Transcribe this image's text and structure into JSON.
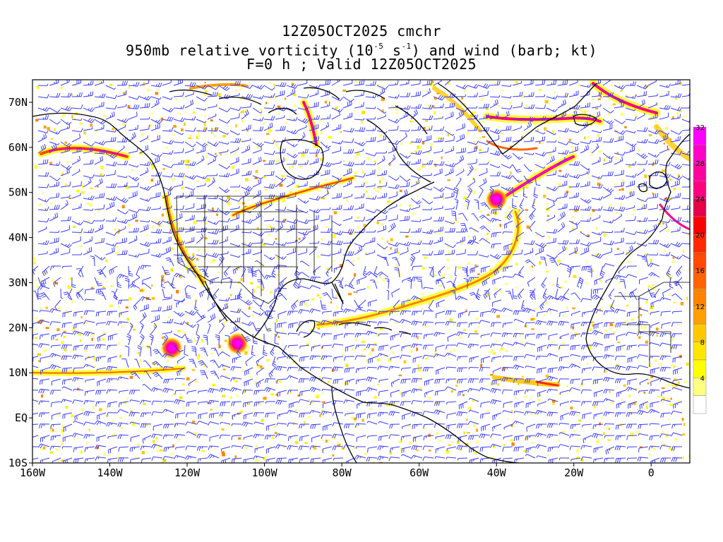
{
  "title": {
    "line1": "12Z05OCT2025 cmchr",
    "line2_pre": "950mb relative vorticity (10",
    "line2_exp1": "-5",
    "line2_mid": " s",
    "line2_exp2": "-1",
    "line2_post": ") and wind (barb; kt)",
    "line3": "F=0 h ; Valid 12Z05OCT2025"
  },
  "map": {
    "projection": "lat-lon",
    "lon_range": [
      -160,
      10
    ],
    "lat_range": [
      -10,
      75
    ],
    "x_ticks": [
      "160W",
      "140W",
      "120W",
      "100W",
      "80W",
      "60W",
      "40W",
      "20W",
      "0"
    ],
    "y_ticks": [
      "10S",
      "EQ",
      "10N",
      "20N",
      "30N",
      "40N",
      "50N",
      "60N",
      "70N"
    ],
    "barb_color": "#3a3aff",
    "coast_color": "#000000"
  },
  "colorbar": {
    "labels": [
      "4",
      "8",
      "12",
      "16",
      "20",
      "24",
      "28",
      "32"
    ],
    "colors": [
      "#ffffff",
      "#ffff80",
      "#ffff00",
      "#ffe600",
      "#ffc800",
      "#ffa000",
      "#ff8200",
      "#ff6400",
      "#ff4a00",
      "#ff2800",
      "#ff0000",
      "#e6004a",
      "#ff0080",
      "#ff00a0",
      "#ff00c8",
      "#ff00ff"
    ]
  },
  "cyclones": [
    {
      "name": "east-pacific-cyclone-1",
      "lon": -124,
      "lat": 15.5
    },
    {
      "name": "east-pacific-cyclone-2",
      "lon": -107,
      "lat": 16.5
    },
    {
      "name": "atlantic-cyclone",
      "lon": -40,
      "lat": 48.5
    }
  ]
}
